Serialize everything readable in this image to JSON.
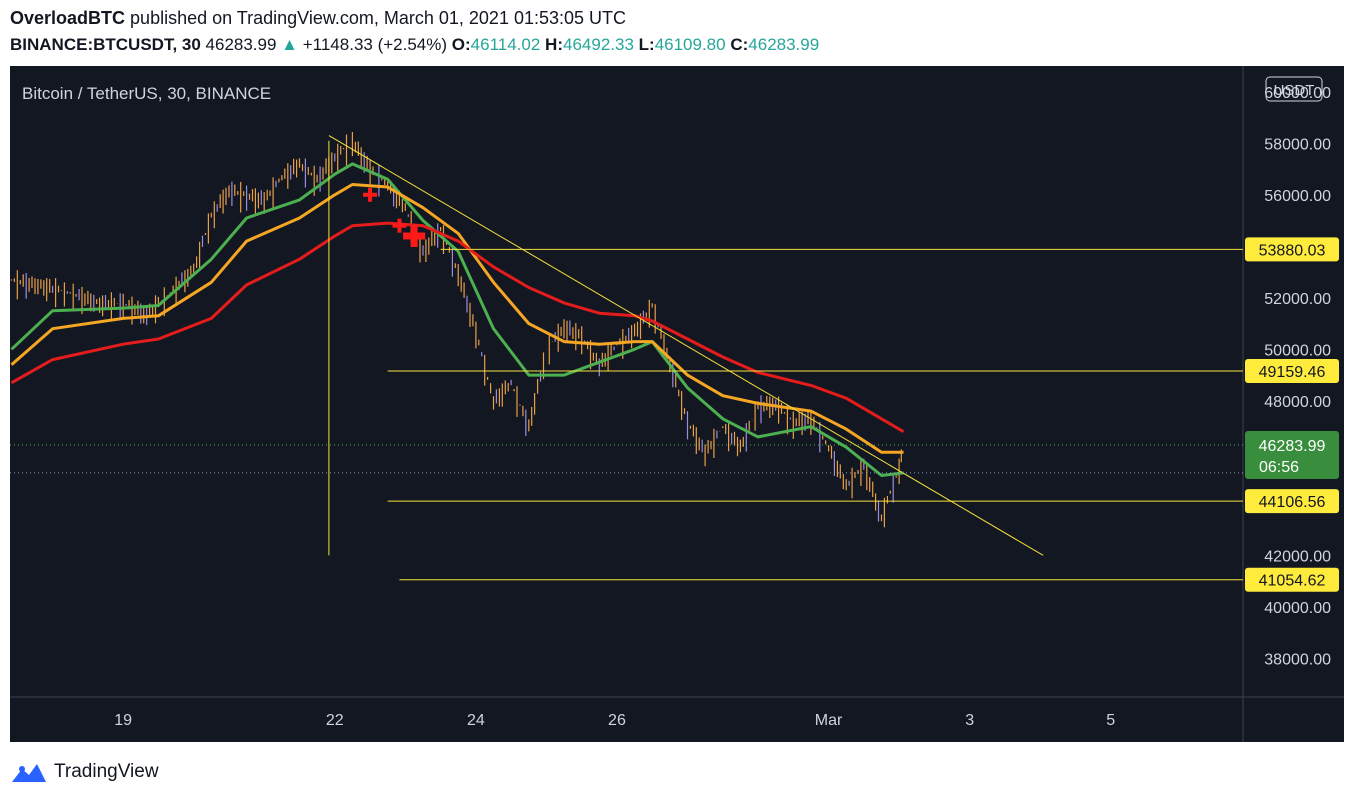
{
  "header": {
    "author": "OverloadBTC",
    "published": "published on TradingView.com, March 01, 2021 01:53:05 UTC"
  },
  "ohlc_line": {
    "symbol": "BINANCE:BTCUSDT, 30",
    "last": "46283.99",
    "change": "+1148.33 (+2.54%)",
    "o_label": "O:",
    "o": "46114.02",
    "h_label": "H:",
    "h": "46492.33",
    "l_label": "L:",
    "l": "46109.80",
    "c_label": "C:",
    "c": "46283.99"
  },
  "chart_data": {
    "type": "line",
    "title": "Bitcoin / TetherUS, 30, BINANCE",
    "currency": "USDT",
    "ylim": [
      36500,
      61000
    ],
    "y_ticks": [
      "60000.00",
      "58000.00",
      "56000.00",
      "52000.00",
      "50000.00",
      "48000.00",
      "42000.00",
      "40000.00",
      "38000.00"
    ],
    "x_ticks": [
      "19",
      "22",
      "24",
      "26",
      "Mar",
      "3",
      "5"
    ],
    "x_tick_dates": [
      "2021-02-19",
      "2021-02-22",
      "2021-02-24",
      "2021-02-26",
      "2021-03-01",
      "2021-03-03",
      "2021-03-05"
    ],
    "x_range": [
      "2021-02-17 09:30",
      "2021-03-06 21:00"
    ],
    "price_series": {
      "name": "",
      "color": "#e8a045",
      "points": [
        [
          "2021-02-17 10:00",
          52500
        ],
        [
          "2021-02-17 20:00",
          52300
        ],
        [
          "2021-02-18 06:00",
          52000
        ],
        [
          "2021-02-18 16:00",
          51600
        ],
        [
          "2021-02-19 00:00",
          51600
        ],
        [
          "2021-02-19 08:00",
          51200
        ],
        [
          "2021-02-19 16:00",
          52000
        ],
        [
          "2021-02-20 00:00",
          52900
        ],
        [
          "2021-02-20 06:00",
          55000
        ],
        [
          "2021-02-20 12:00",
          56000
        ],
        [
          "2021-02-20 18:00",
          55800
        ],
        [
          "2021-02-21 00:00",
          55600
        ],
        [
          "2021-02-21 06:00",
          56500
        ],
        [
          "2021-02-21 12:00",
          57000
        ],
        [
          "2021-02-21 18:00",
          56400
        ],
        [
          "2021-02-22 00:00",
          57300
        ],
        [
          "2021-02-22 06:00",
          57900
        ],
        [
          "2021-02-22 12:00",
          56800
        ],
        [
          "2021-02-22 18:00",
          56200
        ],
        [
          "2021-02-23 00:00",
          55300
        ],
        [
          "2021-02-23 06:00",
          53600
        ],
        [
          "2021-02-23 12:00",
          54500
        ],
        [
          "2021-02-23 18:00",
          52800
        ],
        [
          "2021-02-24 00:00",
          50500
        ],
        [
          "2021-02-24 06:00",
          47800
        ],
        [
          "2021-02-24 12:00",
          48500
        ],
        [
          "2021-02-24 18:00",
          46800
        ],
        [
          "2021-02-25 00:00",
          49800
        ],
        [
          "2021-02-25 06:00",
          50700
        ],
        [
          "2021-02-25 12:00",
          50300
        ],
        [
          "2021-02-25 18:00",
          49200
        ],
        [
          "2021-02-26 00:00",
          50000
        ],
        [
          "2021-02-26 06:00",
          50500
        ],
        [
          "2021-02-26 12:00",
          51500
        ],
        [
          "2021-02-26 18:00",
          49300
        ],
        [
          "2021-02-27 00:00",
          47000
        ],
        [
          "2021-02-27 06:00",
          45800
        ],
        [
          "2021-02-27 12:00",
          46800
        ],
        [
          "2021-02-27 18:00",
          46000
        ],
        [
          "2021-02-28 00:00",
          47600
        ],
        [
          "2021-02-28 06:00",
          47700
        ],
        [
          "2021-02-28 12:00",
          47000
        ],
        [
          "2021-02-28 18:00",
          47100
        ],
        [
          "2021-03-01 00:00",
          46000
        ],
        [
          "2021-03-01 06:00",
          44500
        ],
        [
          "2021-03-01 12:00",
          45300
        ],
        [
          "2021-03-01 18:00",
          43300
        ],
        [
          "2021-03-02 00:00",
          45200
        ],
        [
          "2021-03-02 01:30",
          46283.99
        ]
      ]
    },
    "moving_averages": [
      {
        "name": "",
        "color": "#4caf50",
        "points": [
          [
            "2021-02-17 10:00",
            50000
          ],
          [
            "2021-02-18 00:00",
            51500
          ],
          [
            "2021-02-19 00:00",
            51600
          ],
          [
            "2021-02-19 12:00",
            51700
          ],
          [
            "2021-02-20 06:00",
            53500
          ],
          [
            "2021-02-20 18:00",
            55100
          ],
          [
            "2021-02-21 12:00",
            55800
          ],
          [
            "2021-02-22 00:00",
            56800
          ],
          [
            "2021-02-22 06:00",
            57200
          ],
          [
            "2021-02-22 18:00",
            56600
          ],
          [
            "2021-02-23 06:00",
            55000
          ],
          [
            "2021-02-23 18:00",
            53800
          ],
          [
            "2021-02-24 06:00",
            50800
          ],
          [
            "2021-02-24 18:00",
            49000
          ],
          [
            "2021-02-25 06:00",
            49000
          ],
          [
            "2021-02-25 18:00",
            49500
          ],
          [
            "2021-02-26 06:00",
            50000
          ],
          [
            "2021-02-26 12:00",
            50300
          ],
          [
            "2021-02-27 00:00",
            48500
          ],
          [
            "2021-02-27 12:00",
            47300
          ],
          [
            "2021-02-28 00:00",
            46600
          ],
          [
            "2021-02-28 18:00",
            47000
          ],
          [
            "2021-03-01 06:00",
            46200
          ],
          [
            "2021-03-01 18:00",
            45100
          ],
          [
            "2021-03-02 01:30",
            45200
          ]
        ]
      },
      {
        "name": "",
        "color": "#f5a623",
        "points": [
          [
            "2021-02-17 10:00",
            49400
          ],
          [
            "2021-02-18 00:00",
            50800
          ],
          [
            "2021-02-19 00:00",
            51200
          ],
          [
            "2021-02-19 12:00",
            51300
          ],
          [
            "2021-02-20 06:00",
            52600
          ],
          [
            "2021-02-20 18:00",
            54200
          ],
          [
            "2021-02-21 12:00",
            55100
          ],
          [
            "2021-02-22 00:00",
            56000
          ],
          [
            "2021-02-22 06:00",
            56400
          ],
          [
            "2021-02-22 18:00",
            56300
          ],
          [
            "2021-02-23 06:00",
            55500
          ],
          [
            "2021-02-23 18:00",
            54500
          ],
          [
            "2021-02-24 06:00",
            52600
          ],
          [
            "2021-02-24 18:00",
            51000
          ],
          [
            "2021-02-25 06:00",
            50300
          ],
          [
            "2021-02-25 18:00",
            50200
          ],
          [
            "2021-02-26 06:00",
            50300
          ],
          [
            "2021-02-26 12:00",
            50300
          ],
          [
            "2021-02-27 00:00",
            49000
          ],
          [
            "2021-02-27 12:00",
            48200
          ],
          [
            "2021-02-28 00:00",
            47900
          ],
          [
            "2021-02-28 18:00",
            47600
          ],
          [
            "2021-03-01 06:00",
            46900
          ],
          [
            "2021-03-01 18:00",
            46000
          ],
          [
            "2021-03-02 01:30",
            46000
          ]
        ]
      },
      {
        "name": "",
        "color": "#e51c1c",
        "points": [
          [
            "2021-02-17 10:00",
            48700
          ],
          [
            "2021-02-18 00:00",
            49600
          ],
          [
            "2021-02-19 00:00",
            50200
          ],
          [
            "2021-02-19 12:00",
            50400
          ],
          [
            "2021-02-20 06:00",
            51200
          ],
          [
            "2021-02-20 18:00",
            52500
          ],
          [
            "2021-02-21 12:00",
            53500
          ],
          [
            "2021-02-22 00:00",
            54400
          ],
          [
            "2021-02-22 06:00",
            54800
          ],
          [
            "2021-02-22 18:00",
            54900
          ],
          [
            "2021-02-23 06:00",
            54800
          ],
          [
            "2021-02-23 18:00",
            54200
          ],
          [
            "2021-02-24 06:00",
            53200
          ],
          [
            "2021-02-24 18:00",
            52400
          ],
          [
            "2021-02-25 06:00",
            51800
          ],
          [
            "2021-02-25 18:00",
            51400
          ],
          [
            "2021-02-26 06:00",
            51300
          ],
          [
            "2021-02-26 12:00",
            51100
          ],
          [
            "2021-02-27 00:00",
            50400
          ],
          [
            "2021-02-27 12:00",
            49700
          ],
          [
            "2021-02-28 00:00",
            49100
          ],
          [
            "2021-02-28 18:00",
            48600
          ],
          [
            "2021-03-01 06:00",
            48100
          ],
          [
            "2021-03-01 18:00",
            47300
          ],
          [
            "2021-03-02 01:30",
            46800
          ]
        ]
      }
    ],
    "horizontal_levels": [
      {
        "value": 53880.03,
        "label": "53880.03",
        "from": "2021-02-23 12:00"
      },
      {
        "value": 49159.46,
        "label": "49159.46",
        "from": "2021-02-22 18:00"
      },
      {
        "value": 44106.56,
        "label": "44106.56",
        "from": "2021-02-22 18:00"
      },
      {
        "value": 41054.62,
        "label": "41054.62",
        "from": "2021-02-22 22:00"
      }
    ],
    "trendline": {
      "from": [
        "2021-02-21 22:00",
        58300
      ],
      "to": [
        "2021-03-04 01:00",
        42000
      ]
    },
    "vertical_line": {
      "from": [
        "2021-02-21 22:00",
        58100
      ],
      "to": [
        "2021-02-21 22:00",
        42000
      ]
    },
    "markers": [
      {
        "date": "2021-02-22 12:00",
        "value": 56000,
        "size": "small"
      },
      {
        "date": "2021-02-22 22:00",
        "value": 54800,
        "size": "small"
      },
      {
        "date": "2021-02-23 03:00",
        "value": 54400,
        "size": "large"
      }
    ],
    "last_price": {
      "label": "46283.99",
      "countdown": "06:56",
      "value": 46283.99
    },
    "secondary_dotted_level": 45200,
    "grid": false,
    "colors": {
      "background": "#131722",
      "text": "#d1d4dc",
      "level_line": "#f5e13a",
      "level_label_bg": "#ffeb3b",
      "last_price_bg": "#388e3c",
      "marker": "#ff1a1a"
    }
  },
  "footer": {
    "brand": "TradingView"
  }
}
